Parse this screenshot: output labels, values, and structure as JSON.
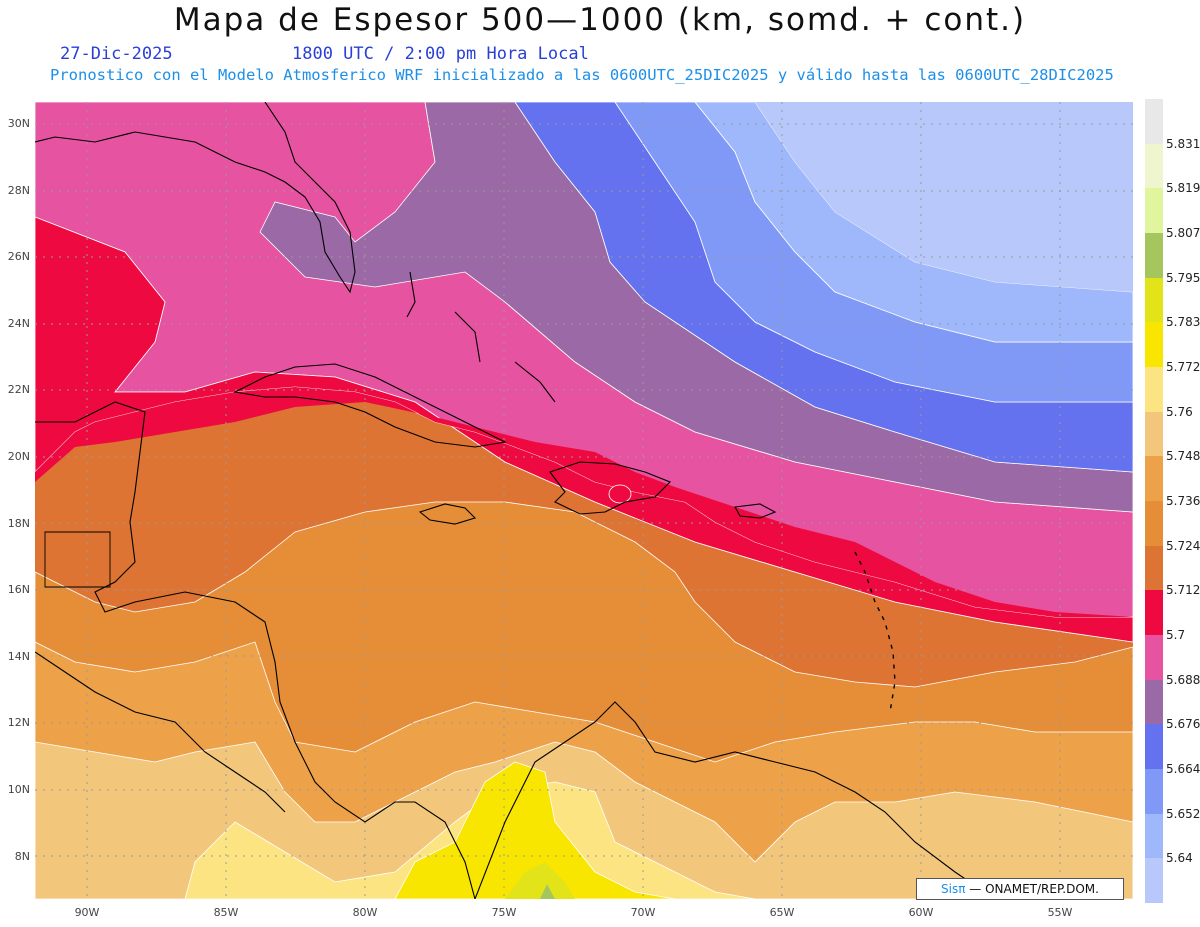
{
  "title": "Mapa de Espesor 500—1000 (km, somd. + cont.)",
  "date": "27-Dic-2025",
  "time": "1800 UTC / 2:00 pm Hora Local",
  "subtitle": "Pronostico con el Modelo Atmosferico WRF inicializado a las 0600UTC_25DIC2025 y válido hasta las  0600UTC_28DIC2025",
  "lat_labels": [
    {
      "deg": 30,
      "label": "30N"
    },
    {
      "deg": 28,
      "label": "28N"
    },
    {
      "deg": 26,
      "label": "26N"
    },
    {
      "deg": 24,
      "label": "24N"
    },
    {
      "deg": 22,
      "label": "22N"
    },
    {
      "deg": 20,
      "label": "20N"
    },
    {
      "deg": 18,
      "label": "18N"
    },
    {
      "deg": 16,
      "label": "16N"
    },
    {
      "deg": 14,
      "label": "14N"
    },
    {
      "deg": 12,
      "label": "12N"
    },
    {
      "deg": 10,
      "label": "10N"
    },
    {
      "deg": 8,
      "label": "8N"
    }
  ],
  "lon_labels": [
    {
      "deg": -90,
      "label": "90W"
    },
    {
      "deg": -85,
      "label": "85W"
    },
    {
      "deg": -80,
      "label": "80W"
    },
    {
      "deg": -75,
      "label": "75W"
    },
    {
      "deg": -70,
      "label": "70W"
    },
    {
      "deg": -65,
      "label": "65W"
    },
    {
      "deg": -60,
      "label": "60W"
    },
    {
      "deg": -55,
      "label": "55W"
    }
  ],
  "colorbar": [
    {
      "color": "#b8c8fb",
      "label": "5.64"
    },
    {
      "color": "#9fb7fb",
      "label": "5.652"
    },
    {
      "color": "#8099f7",
      "label": "5.664"
    },
    {
      "color": "#6472ef",
      "label": "5.676"
    },
    {
      "color": "#9b6aa6",
      "label": "5.688"
    },
    {
      "color": "#e553a1",
      "label": "5.7"
    },
    {
      "color": "#ee0a40",
      "label": "5.712"
    },
    {
      "color": "#dd7433",
      "label": "5.724"
    },
    {
      "color": "#e68d38",
      "label": "5.736"
    },
    {
      "color": "#eda24a",
      "label": "5.748"
    },
    {
      "color": "#f2c77c",
      "label": "5.76"
    },
    {
      "color": "#fbe481",
      "label": "5.772"
    },
    {
      "color": "#f8e600",
      "label": "5.783"
    },
    {
      "color": "#e3e31a",
      "label": "5.795"
    },
    {
      "color": "#a5c65c",
      "label": "5.807"
    },
    {
      "color": "#e1f59e",
      "label": "5.819"
    },
    {
      "color": "#eff5cf",
      "label": "5.831"
    },
    {
      "color": "#e8e8e8",
      "label": ""
    }
  ],
  "credit": {
    "logo": "Sisπ",
    "text": " — ONAMET/REP.DOM."
  }
}
